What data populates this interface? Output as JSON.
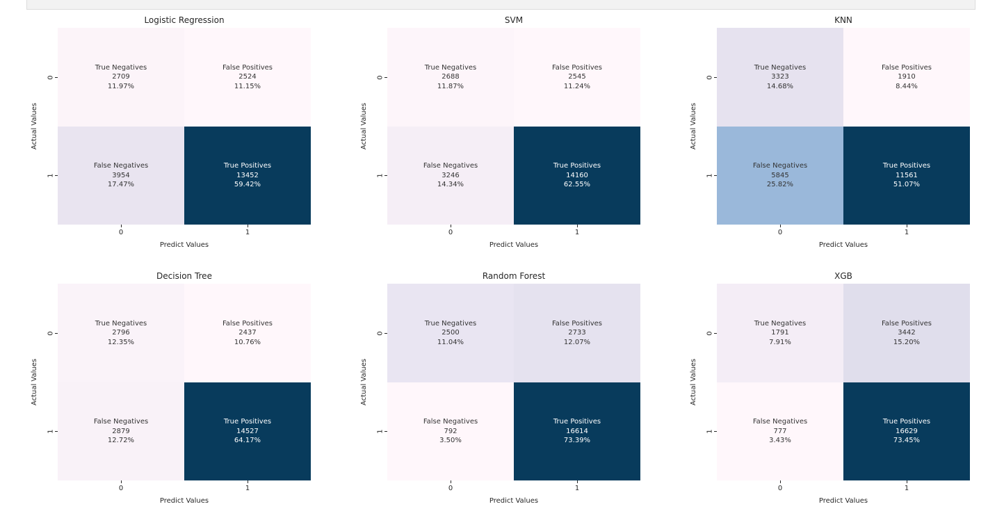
{
  "window": {
    "topbar_color": "#f2f2f2",
    "topbar_border": "#dcdcdc"
  },
  "figure": {
    "background": "#ffffff",
    "text_color": "#262626",
    "dark_cell_text": "#ffffff",
    "light_cell_text": "#333333",
    "colormap": "PuBu",
    "grid_layout": "2x3"
  },
  "chart_data": [
    {
      "type": "heatmap",
      "title": "Logistic Regression",
      "xlabel": "Predict Values",
      "ylabel": "Actual Values",
      "x_ticks": [
        "0",
        "1"
      ],
      "y_ticks": [
        "0",
        "1"
      ],
      "cells": [
        {
          "label": "True Negatives",
          "count": "2709",
          "percent": "11.97%",
          "row": 0,
          "col": 0,
          "bg": "#fcf4f9",
          "fg": "#333333"
        },
        {
          "label": "False Positives",
          "count": "2524",
          "percent": "11.15%",
          "row": 0,
          "col": 1,
          "bg": "#fff7fb",
          "fg": "#333333"
        },
        {
          "label": "False Negatives",
          "count": "3954",
          "percent": "17.47%",
          "row": 1,
          "col": 0,
          "bg": "#e9e4f0",
          "fg": "#333333"
        },
        {
          "label": "True Positives",
          "count": "13452",
          "percent": "59.42%",
          "row": 1,
          "col": 1,
          "bg": "#083b5c",
          "fg": "#ffffff"
        }
      ]
    },
    {
      "type": "heatmap",
      "title": "SVM",
      "xlabel": "Predict Values",
      "ylabel": "Actual Values",
      "x_ticks": [
        "0",
        "1"
      ],
      "y_ticks": [
        "0",
        "1"
      ],
      "cells": [
        {
          "label": "True Negatives",
          "count": "2688",
          "percent": "11.87%",
          "row": 0,
          "col": 0,
          "bg": "#fdf5fa",
          "fg": "#333333"
        },
        {
          "label": "False Positives",
          "count": "2545",
          "percent": "11.24%",
          "row": 0,
          "col": 1,
          "bg": "#fff7fb",
          "fg": "#333333"
        },
        {
          "label": "False Negatives",
          "count": "3246",
          "percent": "14.34%",
          "row": 1,
          "col": 0,
          "bg": "#f5eef6",
          "fg": "#333333"
        },
        {
          "label": "True Positives",
          "count": "14160",
          "percent": "62.55%",
          "row": 1,
          "col": 1,
          "bg": "#083b5c",
          "fg": "#ffffff"
        }
      ]
    },
    {
      "type": "heatmap",
      "title": "KNN",
      "xlabel": "Predict Values",
      "ylabel": "Actual Values",
      "x_ticks": [
        "0",
        "1"
      ],
      "y_ticks": [
        "0",
        "1"
      ],
      "cells": [
        {
          "label": "True Negatives",
          "count": "3323",
          "percent": "14.68%",
          "row": 0,
          "col": 0,
          "bg": "#e6e2ef",
          "fg": "#333333"
        },
        {
          "label": "False Positives",
          "count": "1910",
          "percent": "8.44%",
          "row": 0,
          "col": 1,
          "bg": "#fff7fb",
          "fg": "#333333"
        },
        {
          "label": "False Negatives",
          "count": "5845",
          "percent": "25.82%",
          "row": 1,
          "col": 0,
          "bg": "#9ab8da",
          "fg": "#333333"
        },
        {
          "label": "True Positives",
          "count": "11561",
          "percent": "51.07%",
          "row": 1,
          "col": 1,
          "bg": "#083b5c",
          "fg": "#ffffff"
        }
      ]
    },
    {
      "type": "heatmap",
      "title": "Decision Tree",
      "xlabel": "Predict Values",
      "ylabel": "Actual Values",
      "x_ticks": [
        "0",
        "1"
      ],
      "y_ticks": [
        "0",
        "1"
      ],
      "cells": [
        {
          "label": "True Negatives",
          "count": "2796",
          "percent": "12.35%",
          "row": 0,
          "col": 0,
          "bg": "#faf3f9",
          "fg": "#333333"
        },
        {
          "label": "False Positives",
          "count": "2437",
          "percent": "10.76%",
          "row": 0,
          "col": 1,
          "bg": "#fff7fb",
          "fg": "#333333"
        },
        {
          "label": "False Negatives",
          "count": "2879",
          "percent": "12.72%",
          "row": 1,
          "col": 0,
          "bg": "#f9f2f8",
          "fg": "#333333"
        },
        {
          "label": "True Positives",
          "count": "14527",
          "percent": "64.17%",
          "row": 1,
          "col": 1,
          "bg": "#083b5c",
          "fg": "#ffffff"
        }
      ]
    },
    {
      "type": "heatmap",
      "title": "Random Forest",
      "xlabel": "Predict Values",
      "ylabel": "Actual Values",
      "x_ticks": [
        "0",
        "1"
      ],
      "y_ticks": [
        "0",
        "1"
      ],
      "cells": [
        {
          "label": "True Negatives",
          "count": "2500",
          "percent": "11.04%",
          "row": 0,
          "col": 0,
          "bg": "#e9e5f2",
          "fg": "#333333"
        },
        {
          "label": "False Positives",
          "count": "2733",
          "percent": "12.07%",
          "row": 0,
          "col": 1,
          "bg": "#e5e2ef",
          "fg": "#333333"
        },
        {
          "label": "False Negatives",
          "count": "792",
          "percent": "3.50%",
          "row": 1,
          "col": 0,
          "bg": "#fff7fb",
          "fg": "#333333"
        },
        {
          "label": "True Positives",
          "count": "16614",
          "percent": "73.39%",
          "row": 1,
          "col": 1,
          "bg": "#083b5c",
          "fg": "#ffffff"
        }
      ]
    },
    {
      "type": "heatmap",
      "title": "XGB",
      "xlabel": "Predict Values",
      "ylabel": "Actual Values",
      "x_ticks": [
        "0",
        "1"
      ],
      "y_ticks": [
        "0",
        "1"
      ],
      "cells": [
        {
          "label": "True Negatives",
          "count": "1791",
          "percent": "7.91%",
          "row": 0,
          "col": 0,
          "bg": "#f4edf6",
          "fg": "#333333"
        },
        {
          "label": "False Positives",
          "count": "3442",
          "percent": "15.20%",
          "row": 0,
          "col": 1,
          "bg": "#e0deec",
          "fg": "#333333"
        },
        {
          "label": "False Negatives",
          "count": "777",
          "percent": "3.43%",
          "row": 1,
          "col": 0,
          "bg": "#fff7fb",
          "fg": "#333333"
        },
        {
          "label": "True Positives",
          "count": "16629",
          "percent": "73.45%",
          "row": 1,
          "col": 1,
          "bg": "#083b5c",
          "fg": "#ffffff"
        }
      ]
    }
  ]
}
